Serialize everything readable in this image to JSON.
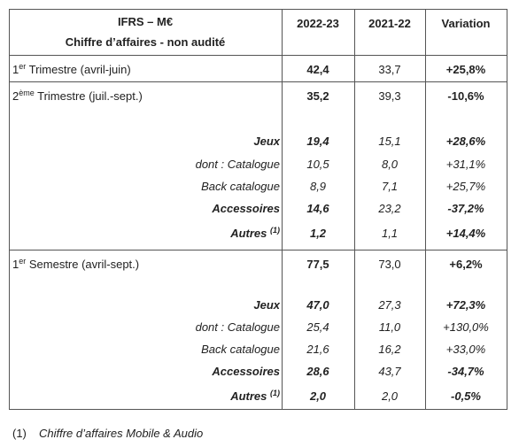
{
  "header": {
    "line1": "IFRS – M€",
    "line2": "Chiffre d’affaires - non audité",
    "columns": [
      "2022-23",
      "2021-22",
      "Variation"
    ]
  },
  "sections": [
    {
      "main": {
        "label": {
          "pre": "1",
          "sup": "er",
          "post": " Trimestre (avril-juin)"
        },
        "values": [
          "42,4",
          "33,7",
          "+25,8%"
        ]
      },
      "details": []
    },
    {
      "main": {
        "label": {
          "pre": "2",
          "sup": "ème",
          "post": " Trimestre (juil.-sept.)"
        },
        "values": [
          "35,2",
          "39,3",
          "-10,6%"
        ]
      },
      "details": [
        {
          "label": {
            "pre": "Jeux"
          },
          "values": [
            "19,4",
            "15,1",
            "+28,6%"
          ]
        },
        {
          "label": {
            "pre": "dont : Catalogue"
          },
          "values": [
            "10,5",
            "8,0",
            "+31,1%"
          ]
        },
        {
          "label": {
            "pre": "Back catalogue"
          },
          "values": [
            "8,9",
            "7,1",
            "+25,7%"
          ]
        },
        {
          "label": {
            "pre": "Accessoires"
          },
          "values": [
            "14,6",
            "23,2",
            "-37,2%"
          ]
        },
        {
          "label": {
            "pre": "Autres ",
            "sup": "(1)"
          },
          "values": [
            "1,2",
            "1,1",
            "+14,4%"
          ]
        }
      ]
    },
    {
      "main": {
        "label": {
          "pre": "1",
          "sup": "er",
          "post": " Semestre (avril-sept.)"
        },
        "values": [
          "77,5",
          "73,0",
          "+6,2%"
        ]
      },
      "details": [
        {
          "label": {
            "pre": "Jeux"
          },
          "values": [
            "47,0",
            "27,3",
            "+72,3%"
          ]
        },
        {
          "label": {
            "pre": "dont : Catalogue"
          },
          "values": [
            "25,4",
            "11,0",
            "+130,0%"
          ]
        },
        {
          "label": {
            "pre": "Back catalogue"
          },
          "values": [
            "21,6",
            "16,2",
            "+33,0%"
          ]
        },
        {
          "label": {
            "pre": "Accessoires"
          },
          "values": [
            "28,6",
            "43,7",
            "-34,7%"
          ]
        },
        {
          "label": {
            "pre": "Autres ",
            "sup": "(1)"
          },
          "values": [
            "2,0",
            "2,0",
            "-0,5%"
          ]
        }
      ]
    }
  ],
  "footnote": {
    "marker": "(1)",
    "text": "Chiffre d’affaires Mobile & Audio"
  }
}
